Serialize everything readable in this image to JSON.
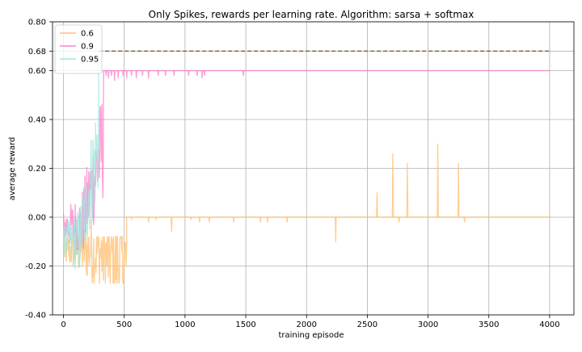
{
  "chart_data": {
    "type": "line",
    "title": "Only Spikes, rewards per learning rate. Algorithm: sarsa + softmax",
    "xlabel": "training episode",
    "ylabel": "average reward",
    "xlim": [
      -90,
      4200
    ],
    "ylim": [
      -0.4,
      0.8
    ],
    "x_ticks": [
      0,
      500,
      1000,
      1500,
      2000,
      2500,
      3000,
      3500,
      4000
    ],
    "y_ticks": [
      -0.4,
      -0.2,
      0.0,
      0.2,
      0.4,
      0.6,
      0.68,
      0.8
    ],
    "y_tick_labels": [
      "-0.40",
      "-0.20",
      "0.00",
      "0.20",
      "0.40",
      "0.60",
      "0.68",
      "0.80"
    ],
    "grid": true,
    "legend_position": "top-left",
    "reference_line": {
      "y": 0.68,
      "style": "dashed",
      "color": "#a0522d"
    },
    "series": [
      {
        "name": "0.6",
        "color": "#ffbf70",
        "opacity": 0.75,
        "early": {
          "x_end": 520,
          "low": -0.27,
          "high": 0.0,
          "upper_tail": -0.08
        },
        "plateau": 0.0,
        "plateau_start": 520,
        "spikes": [
          [
            560,
            -0.01
          ],
          [
            700,
            -0.02
          ],
          [
            760,
            -0.01
          ],
          [
            890,
            -0.06
          ],
          [
            1050,
            -0.01
          ],
          [
            1120,
            -0.02
          ],
          [
            1200,
            -0.02
          ],
          [
            1400,
            -0.02
          ],
          [
            1620,
            -0.02
          ],
          [
            1680,
            -0.02
          ],
          [
            1840,
            -0.02
          ],
          [
            2240,
            -0.1
          ],
          [
            2580,
            0.1
          ],
          [
            2710,
            0.26
          ],
          [
            2760,
            -0.02
          ],
          [
            2830,
            0.22
          ],
          [
            3080,
            0.3
          ],
          [
            3250,
            0.22
          ],
          [
            3300,
            -0.02
          ]
        ]
      },
      {
        "name": "0.9",
        "color": "#ff80c8",
        "opacity": 0.75,
        "early": {
          "x_end": 330,
          "low": -0.27,
          "high": 0.2,
          "upper_tail": 0.68
        },
        "plateau": 0.6,
        "plateau_start": 330,
        "spikes": [
          [
            350,
            0.58
          ],
          [
            370,
            0.57
          ],
          [
            395,
            0.58
          ],
          [
            420,
            0.56
          ],
          [
            450,
            0.57
          ],
          [
            490,
            0.58
          ],
          [
            520,
            0.57
          ],
          [
            560,
            0.58
          ],
          [
            600,
            0.57
          ],
          [
            650,
            0.58
          ],
          [
            700,
            0.57
          ],
          [
            780,
            0.58
          ],
          [
            840,
            0.58
          ],
          [
            910,
            0.58
          ],
          [
            1030,
            0.58
          ],
          [
            1100,
            0.58
          ],
          [
            1140,
            0.57
          ],
          [
            1160,
            0.58
          ],
          [
            1480,
            0.58
          ]
        ]
      },
      {
        "name": "0.95",
        "color": "#9ee8e0",
        "opacity": 0.75,
        "early": {
          "x_end": 290,
          "low": -0.3,
          "high": 0.1,
          "upper_tail": 0.68
        },
        "plateau": 0.68,
        "plateau_start": 290,
        "spikes": []
      }
    ]
  }
}
